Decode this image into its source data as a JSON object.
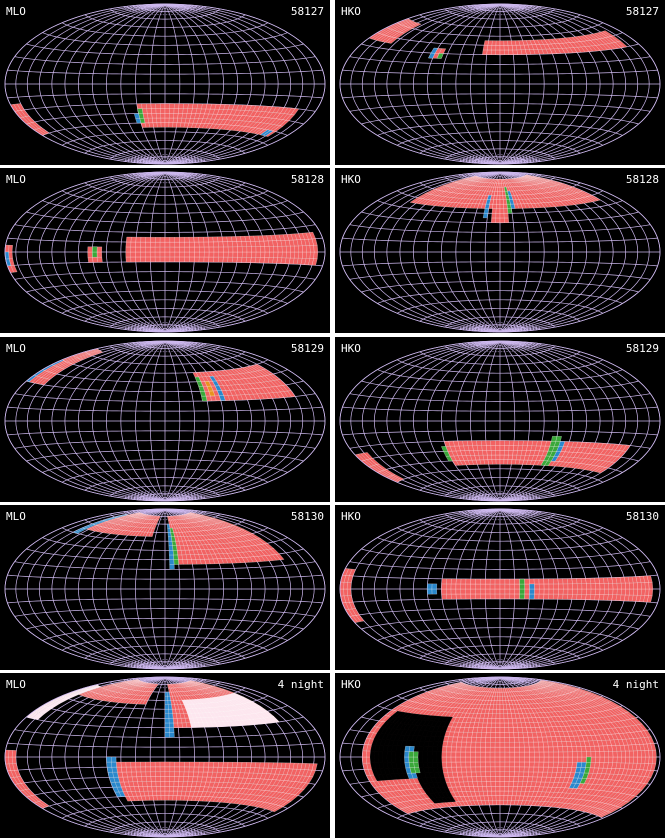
{
  "panels": [
    {
      "site": "MLO",
      "label": "58127"
    },
    {
      "site": "HKO",
      "label": "58127"
    },
    {
      "site": "MLO",
      "label": "58128"
    },
    {
      "site": "HKO",
      "label": "58128"
    },
    {
      "site": "MLO",
      "label": "58129"
    },
    {
      "site": "HKO",
      "label": "58129"
    },
    {
      "site": "MLO",
      "label": "58130"
    },
    {
      "site": "HKO",
      "label": "58130"
    },
    {
      "site": "MLO",
      "label": "4 night"
    },
    {
      "site": "HKO",
      "label": "4 night"
    }
  ]
}
